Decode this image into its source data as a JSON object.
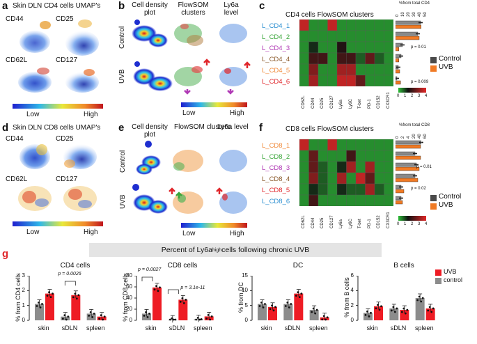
{
  "panel_a": {
    "letter": "a",
    "title": "Skin DLN CD4 cells UMAP's",
    "markers": [
      "CD44",
      "CD25",
      "CD62L",
      "CD127"
    ],
    "scale_low": "Low",
    "scale_high": "High"
  },
  "panel_b": {
    "letter": "b",
    "col_headers": [
      "Cell density plot",
      "FlowSOM clusters",
      "Ly6a level"
    ],
    "row_labels": [
      "Control",
      "UVB"
    ],
    "scale_low": "Low",
    "scale_high": "High"
  },
  "panel_c": {
    "letter": "c",
    "title": "CD4 cells FlowSOM clusters",
    "axis_title": "%from total CD4",
    "axis_ticks": [
      "0",
      "10",
      "20",
      "30",
      "40",
      "50"
    ],
    "clusters": [
      "L_CD4_1",
      "L_CD4_2",
      "L_CD4_3",
      "L_CD4_4",
      "L_CD4_5",
      "L_CD4_6"
    ],
    "cluster_colors": [
      "#2b8fd1",
      "#3aa63a",
      "#b03ab5",
      "#8a5a2b",
      "#f08a3a",
      "#e0262b"
    ],
    "markers": [
      "CD62L",
      "CD44",
      "CD25",
      "CD127",
      "Ly6a",
      "Ly6C",
      "T-bet",
      "PD-1",
      "CD152",
      "CX3CR1"
    ],
    "pvalues": [
      "p = 0.01",
      "p = 0.009"
    ],
    "legend": [
      "Control",
      "UVB"
    ],
    "colorbar_ticks": [
      "0",
      "1",
      "2",
      "3",
      "4"
    ]
  },
  "panel_d": {
    "letter": "d",
    "title": "Skin DLN CD8 cells UMAP's",
    "markers": [
      "CD44",
      "CD25",
      "CD62L",
      "CD127"
    ],
    "scale_low": "Low",
    "scale_high": "High"
  },
  "panel_e": {
    "letter": "e",
    "col_headers": [
      "Cell density plot",
      "FlowSOM clusters",
      "Ly6a level"
    ],
    "row_labels": [
      "Control",
      "UVB"
    ],
    "scale_low": "Low",
    "scale_high": "High"
  },
  "panel_f": {
    "letter": "f",
    "title": "CD8 cells FlowSOM clusters",
    "axis_title": "%from total CD8",
    "axis_ticks": [
      "0",
      "2",
      "4",
      "20",
      "40",
      "60"
    ],
    "clusters": [
      "L_CD8_1",
      "L_CD8_2",
      "L_CD8_3",
      "L_CD8_4",
      "L_CD8_5",
      "L_CD8_6"
    ],
    "cluster_colors": [
      "#f08a3a",
      "#3aa63a",
      "#b03ab5",
      "#8a5a2b",
      "#e0262b",
      "#2b8fd1"
    ],
    "markers": [
      "CD62L",
      "CD44",
      "CD25",
      "CD127",
      "Ly6a",
      "Ly6C",
      "T-bet",
      "PD-1",
      "CD152",
      "CX3CR1"
    ],
    "pvalues": [
      "p = 0.01",
      "p = 0.02"
    ],
    "legend": [
      "Control",
      "UVB"
    ],
    "colorbar_ticks": [
      "0",
      "1",
      "2",
      "3",
      "4"
    ]
  },
  "panel_g": {
    "letter": "g",
    "banner_prefix": "Percent of Ly6a",
    "banner_sup": "high",
    "banner_suffix": " cells following chronic UVB",
    "legend": [
      "UVB",
      "control"
    ],
    "colors": {
      "uvb": "#ee1c24",
      "control": "#8c8c8c"
    },
    "groups": [
      "skin",
      "sDLN",
      "spleen"
    ]
  },
  "chart_data": [
    {
      "type": "bar",
      "title": "CD4 cells",
      "ylabel": "% from CD4 cells",
      "ylim": [
        0,
        3
      ],
      "yticks": [
        "0",
        "1",
        "2",
        "3"
      ],
      "categories": [
        "skin",
        "sDLN",
        "spleen"
      ],
      "annotation": "p = 0.0026",
      "series": [
        {
          "name": "control",
          "values": [
            1.1,
            0.25,
            0.45
          ]
        },
        {
          "name": "UVB",
          "values": [
            1.8,
            1.7,
            0.25
          ]
        }
      ]
    },
    {
      "type": "bar",
      "title": "CD8 cells",
      "ylabel": "% from CD8 cells",
      "ylim": [
        0,
        80
      ],
      "yticks": [
        "0",
        "20",
        "40",
        "60",
        "80"
      ],
      "categories": [
        "skin",
        "sDLN",
        "spleen"
      ],
      "annotations": [
        "p = 0.0027",
        "p = 3.1e-11"
      ],
      "series": [
        {
          "name": "control",
          "values": [
            12,
            1,
            2
          ]
        },
        {
          "name": "UVB",
          "values": [
            59,
            37,
            7
          ]
        }
      ]
    },
    {
      "type": "bar",
      "title": "DC",
      "ylabel": "% from DC",
      "ylim": [
        0,
        15
      ],
      "yticks": [
        "0",
        "5",
        "10",
        "15"
      ],
      "categories": [
        "skin",
        "sDLN",
        "spleen"
      ],
      "series": [
        {
          "name": "control",
          "values": [
            5.5,
            5.5,
            3.5
          ]
        },
        {
          "name": "UVB",
          "values": [
            4.5,
            9,
            1
          ]
        }
      ]
    },
    {
      "type": "bar",
      "title": "B cells",
      "ylabel": "% from B cells",
      "ylim": [
        0,
        6
      ],
      "yticks": [
        "0",
        "2",
        "4",
        "6"
      ],
      "categories": [
        "skin",
        "sDLN",
        "spleen"
      ],
      "series": [
        {
          "name": "control",
          "values": [
            1.0,
            1.6,
            3.0
          ]
        },
        {
          "name": "UVB",
          "values": [
            1.9,
            1.4,
            1.6
          ]
        }
      ]
    }
  ]
}
